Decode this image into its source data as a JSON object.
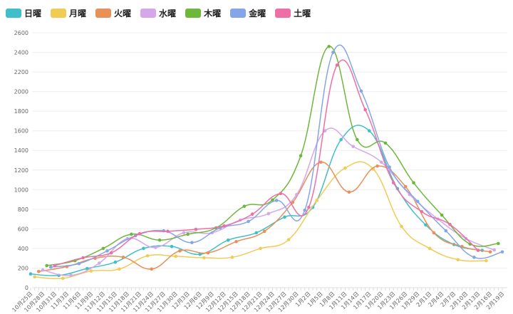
{
  "chart_data": {
    "type": "line",
    "title": "",
    "xlabel": "",
    "ylabel": "",
    "ylim": [
      0,
      2600
    ],
    "yticks": [
      0,
      200,
      400,
      600,
      800,
      1000,
      1200,
      1400,
      1600,
      1800,
      2000,
      2200,
      2400,
      2600
    ],
    "grid": true,
    "legend_position": "top-left",
    "smooth": true,
    "xtick_labels": [
      "10月25日",
      "10月28日",
      "10月31日",
      "11月3日",
      "11月6日",
      "11月9日",
      "11月12日",
      "11月15日",
      "11月18日",
      "11月21日",
      "11月24日",
      "11月27日",
      "11月30日",
      "12月3日",
      "12月6日",
      "12月9日",
      "12月12日",
      "12月15日",
      "12月18日",
      "12月21日",
      "12月24日",
      "12月27日",
      "12月30日",
      "1月2日",
      "1月5日",
      "1月8日",
      "1月11日",
      "1月14日",
      "1月17日",
      "1月20日",
      "1月23日",
      "1月26日",
      "1月29日",
      "2月1日",
      "2月4日",
      "2月7日",
      "2月10日",
      "2月13日",
      "2月16日",
      "2月19日"
    ],
    "series": [
      {
        "name": "日曜",
        "color": "#3fbfc9",
        "x": [
          "10月25日",
          "11月1日",
          "11月8日",
          "11月15日",
          "11月22日",
          "11月29日",
          "12月6日",
          "12月13日",
          "12月20日",
          "12月27日",
          "1月3日",
          "1月10日",
          "1月17日",
          "1月24日",
          "1月31日",
          "2月7日",
          "2月14日"
        ],
        "y": [
          140,
          125,
          195,
          260,
          400,
          420,
          340,
          485,
          560,
          720,
          820,
          1510,
          1600,
          1010,
          640,
          440,
          380
        ]
      },
      {
        "name": "月曜",
        "color": "#f0cc55",
        "x": [
          "10月26日",
          "11月2日",
          "11月9日",
          "11月16日",
          "11月23日",
          "11月30日",
          "12月7日",
          "12月14日",
          "12月21日",
          "12月28日",
          "1月4日",
          "1月11日",
          "1月18日",
          "1月25日",
          "2月1日",
          "2月8日",
          "2月15日"
        ],
        "y": [
          110,
          95,
          170,
          190,
          325,
          320,
          305,
          310,
          400,
          490,
          890,
          1220,
          1210,
          625,
          400,
          285,
          275
        ]
      },
      {
        "name": "火曜",
        "color": "#e98f58",
        "x": [
          "10月27日",
          "11月3日",
          "11月10日",
          "11月17日",
          "11月24日",
          "12月1日",
          "12月8日",
          "12月15日",
          "12月22日",
          "12月29日",
          "1月5日",
          "1月12日",
          "1月19日",
          "1月26日",
          "2月2日",
          "2月9日",
          "2月16日"
        ],
        "y": [
          165,
          215,
          300,
          310,
          190,
          375,
          355,
          470,
          575,
          870,
          1280,
          975,
          1240,
          1030,
          560,
          420,
          365
        ]
      },
      {
        "name": "水曜",
        "color": "#d6a6ea",
        "x": [
          "10月28日",
          "11月4日",
          "11月11日",
          "11月18日",
          "11月25日",
          "12月2日",
          "12月9日",
          "12月16日",
          "12月23日",
          "12月30日",
          "1月6日",
          "1月13日",
          "1月20日",
          "1月27日",
          "2月3日",
          "2月10日",
          "2月17日"
        ],
        "y": [
          180,
          125,
          250,
          500,
          410,
          560,
          560,
          690,
          755,
          950,
          1600,
          1440,
          1280,
          950,
          700,
          500,
          385
        ]
      },
      {
        "name": "木曜",
        "color": "#6db83a",
        "x": [
          "10月29日",
          "11月5日",
          "11月12日",
          "11月19日",
          "11月26日",
          "12月3日",
          "12月10日",
          "12月17日",
          "12月24日",
          "12月31日",
          "1月7日",
          "1月14日",
          "1月21日",
          "1月28日",
          "2月4日",
          "2月11日",
          "2月18日"
        ],
        "y": [
          225,
          275,
          400,
          545,
          485,
          545,
          610,
          830,
          895,
          1345,
          2460,
          1510,
          1475,
          1070,
          740,
          445,
          450
        ]
      },
      {
        "name": "金曜",
        "color": "#85a6e6",
        "x": [
          "10月30日",
          "11月6日",
          "11月13日",
          "11月20日",
          "11月27日",
          "12月4日",
          "12月11日",
          "12月18日",
          "12月25日",
          "1月1日",
          "1月8日",
          "1月15日",
          "1月22日",
          "1月29日",
          "2月5日",
          "2月12日",
          "2月19日"
        ],
        "y": [
          210,
          245,
          375,
          530,
          580,
          460,
          610,
          675,
          890,
          790,
          2400,
          2005,
          1230,
          880,
          580,
          310,
          365
        ]
      },
      {
        "name": "土曜",
        "color": "#ee6fa6",
        "x": [
          "10月31日",
          "11月7日",
          "11月14日",
          "11月21日",
          "11月28日",
          "12月5日",
          "12月12日",
          "12月19日",
          "12月26日",
          "1月2日",
          "1月9日",
          "1月16日",
          "1月23日",
          "1月30日",
          "2月6日",
          "2月13日"
        ],
        "y": [
          225,
          305,
          355,
          550,
          575,
          595,
          630,
          750,
          960,
          820,
          2270,
          1815,
          1070,
          775,
          645,
          380
        ]
      }
    ]
  }
}
